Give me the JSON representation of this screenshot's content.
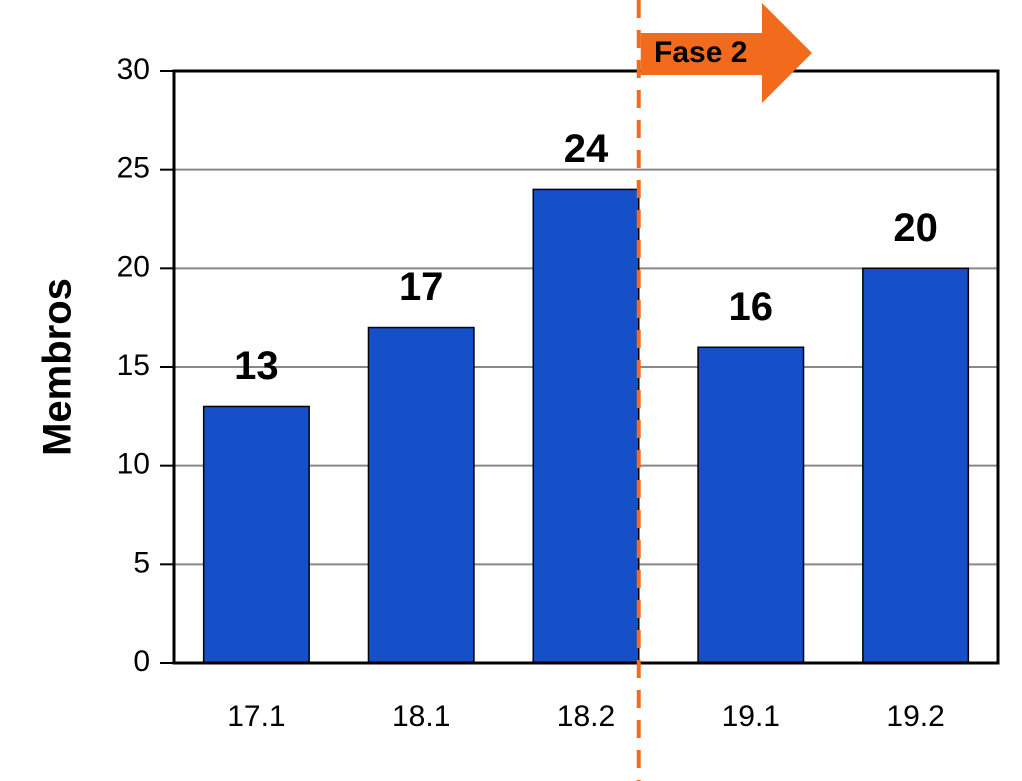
{
  "chart_data": {
    "type": "bar",
    "y_label": "Membros",
    "annotation": "Fase 2",
    "categories": [
      "17.1",
      "18.1",
      "18.2",
      "19.1",
      "19.2"
    ],
    "values": [
      13,
      17,
      24,
      16,
      20
    ],
    "color": "#1650c8",
    "ylim": [
      0,
      30
    ],
    "yticks": [
      0,
      5,
      10,
      15,
      20,
      25,
      30
    ],
    "grid": true
  }
}
